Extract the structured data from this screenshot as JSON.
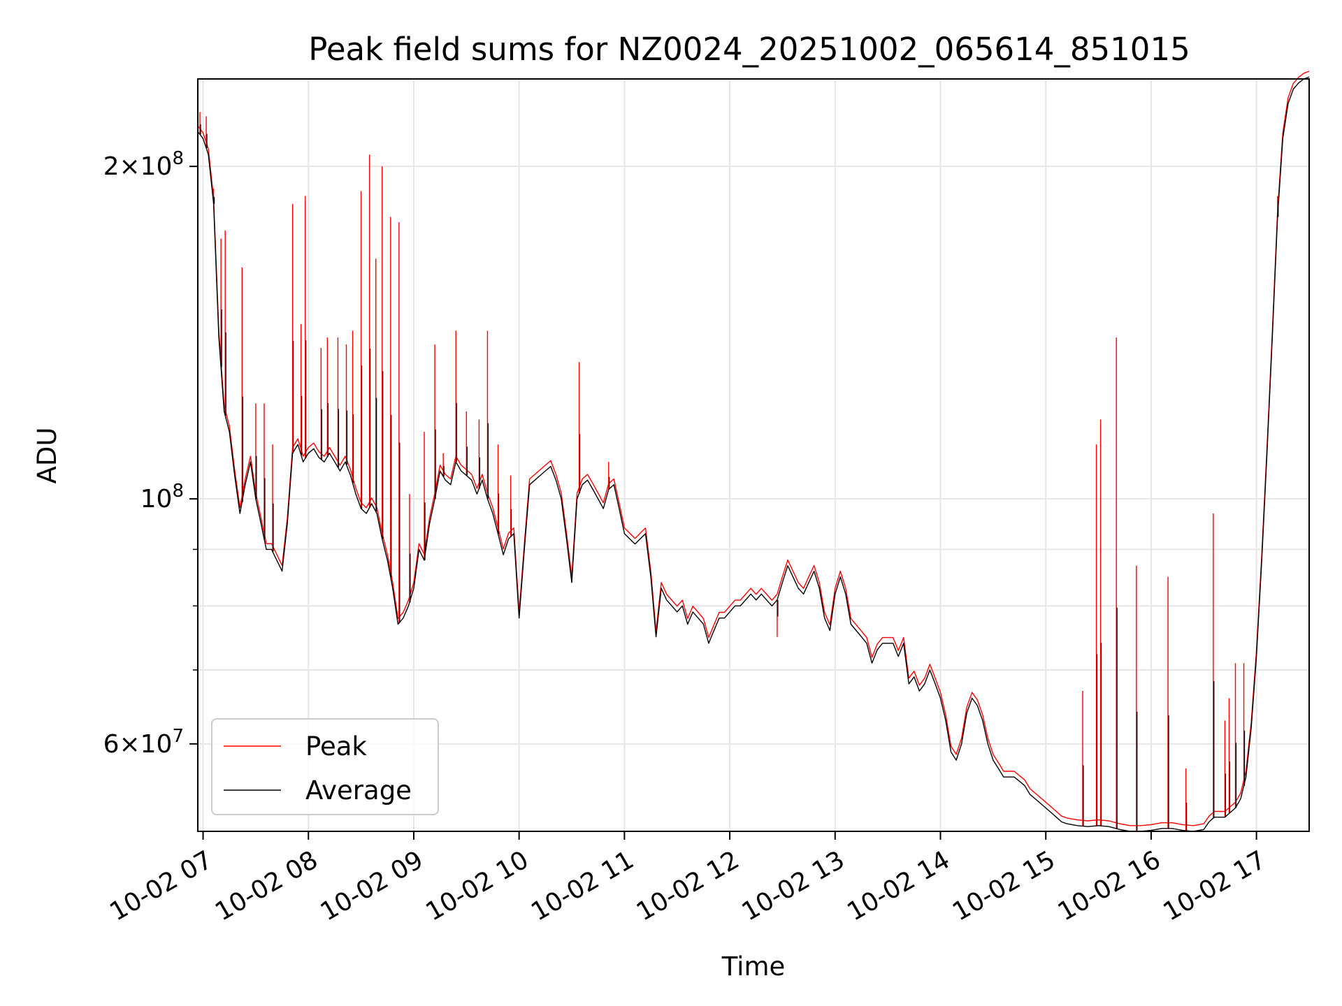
{
  "chart_data": {
    "type": "line",
    "title": "Peak field sums for NZ0024_20251002_065614_851015",
    "xlabel": "Time",
    "ylabel": "ADU",
    "yscale": "log",
    "x_unit": "hour of 2025-10-02",
    "xlim": [
      6.95,
      17.5
    ],
    "ylim": [
      50000000,
      240000000
    ],
    "x_tick_values": [
      7,
      8,
      9,
      10,
      11,
      12,
      13,
      14,
      15,
      16,
      17
    ],
    "x_tick_labels": [
      "10-02 07",
      "10-02 08",
      "10-02 09",
      "10-02 10",
      "10-02 11",
      "10-02 12",
      "10-02 13",
      "10-02 14",
      "10-02 15",
      "10-02 16",
      "10-02 17"
    ],
    "y_major_ticks": [
      {
        "value": 60000000,
        "mantissa": "6",
        "exp": "7"
      },
      {
        "value": 100000000,
        "mantissa": "",
        "exp": "8"
      },
      {
        "value": 200000000,
        "mantissa": "2",
        "exp": "8"
      }
    ],
    "y_minor_ticks": [
      70000000,
      80000000,
      90000000
    ],
    "grid": true,
    "legend_position": "lower-left",
    "series": [
      {
        "name": "Peak",
        "color": "#ff0000"
      },
      {
        "name": "Average",
        "color": "#000000"
      }
    ],
    "average_points": [
      [
        6.95,
        215000000
      ],
      [
        7.0,
        212000000
      ],
      [
        7.05,
        205000000
      ],
      [
        7.1,
        185000000
      ],
      [
        7.15,
        140000000
      ],
      [
        7.2,
        120000000
      ],
      [
        7.25,
        115000000
      ],
      [
        7.3,
        105000000
      ],
      [
        7.35,
        97000000
      ],
      [
        7.4,
        103000000
      ],
      [
        7.45,
        108000000
      ],
      [
        7.5,
        100000000
      ],
      [
        7.55,
        95000000
      ],
      [
        7.6,
        90000000
      ],
      [
        7.65,
        90000000
      ],
      [
        7.7,
        88000000
      ],
      [
        7.75,
        86000000
      ],
      [
        7.8,
        95000000
      ],
      [
        7.85,
        110000000
      ],
      [
        7.9,
        112000000
      ],
      [
        7.95,
        108000000
      ],
      [
        8.0,
        110000000
      ],
      [
        8.05,
        111000000
      ],
      [
        8.1,
        109000000
      ],
      [
        8.15,
        108000000
      ],
      [
        8.2,
        110000000
      ],
      [
        8.25,
        108000000
      ],
      [
        8.3,
        106000000
      ],
      [
        8.35,
        108000000
      ],
      [
        8.4,
        105000000
      ],
      [
        8.45,
        101000000
      ],
      [
        8.5,
        98000000
      ],
      [
        8.55,
        97000000
      ],
      [
        8.6,
        99000000
      ],
      [
        8.65,
        97000000
      ],
      [
        8.7,
        92000000
      ],
      [
        8.75,
        88000000
      ],
      [
        8.8,
        83000000
      ],
      [
        8.85,
        77000000
      ],
      [
        8.9,
        78000000
      ],
      [
        8.95,
        80000000
      ],
      [
        9.0,
        83000000
      ],
      [
        9.05,
        90000000
      ],
      [
        9.1,
        88000000
      ],
      [
        9.15,
        95000000
      ],
      [
        9.2,
        100000000
      ],
      [
        9.25,
        106000000
      ],
      [
        9.3,
        104000000
      ],
      [
        9.35,
        103000000
      ],
      [
        9.4,
        108000000
      ],
      [
        9.45,
        106000000
      ],
      [
        9.5,
        105000000
      ],
      [
        9.55,
        104000000
      ],
      [
        9.6,
        101000000
      ],
      [
        9.65,
        104000000
      ],
      [
        9.7,
        100000000
      ],
      [
        9.75,
        97000000
      ],
      [
        9.8,
        93000000
      ],
      [
        9.85,
        89000000
      ],
      [
        9.9,
        92000000
      ],
      [
        9.95,
        93000000
      ],
      [
        10.0,
        78000000
      ],
      [
        10.05,
        90000000
      ],
      [
        10.1,
        103000000
      ],
      [
        10.15,
        104000000
      ],
      [
        10.2,
        105000000
      ],
      [
        10.25,
        106000000
      ],
      [
        10.3,
        107000000
      ],
      [
        10.35,
        104000000
      ],
      [
        10.4,
        100000000
      ],
      [
        10.45,
        92000000
      ],
      [
        10.5,
        84000000
      ],
      [
        10.55,
        100000000
      ],
      [
        10.6,
        103000000
      ],
      [
        10.65,
        104000000
      ],
      [
        10.7,
        102000000
      ],
      [
        10.75,
        100000000
      ],
      [
        10.8,
        98000000
      ],
      [
        10.85,
        102000000
      ],
      [
        10.9,
        103000000
      ],
      [
        10.95,
        98000000
      ],
      [
        11.0,
        93000000
      ],
      [
        11.05,
        92000000
      ],
      [
        11.1,
        91000000
      ],
      [
        11.15,
        92000000
      ],
      [
        11.2,
        93000000
      ],
      [
        11.25,
        85000000
      ],
      [
        11.3,
        75000000
      ],
      [
        11.35,
        83000000
      ],
      [
        11.4,
        81000000
      ],
      [
        11.45,
        80000000
      ],
      [
        11.5,
        79000000
      ],
      [
        11.55,
        80000000
      ],
      [
        11.6,
        77000000
      ],
      [
        11.65,
        79000000
      ],
      [
        11.7,
        78000000
      ],
      [
        11.75,
        77000000
      ],
      [
        11.8,
        74000000
      ],
      [
        11.85,
        76000000
      ],
      [
        11.9,
        78000000
      ],
      [
        11.95,
        78000000
      ],
      [
        12.0,
        79000000
      ],
      [
        12.05,
        80000000
      ],
      [
        12.1,
        80000000
      ],
      [
        12.15,
        81000000
      ],
      [
        12.2,
        82000000
      ],
      [
        12.25,
        81000000
      ],
      [
        12.3,
        82000000
      ],
      [
        12.35,
        81000000
      ],
      [
        12.4,
        80000000
      ],
      [
        12.45,
        81000000
      ],
      [
        12.5,
        84000000
      ],
      [
        12.55,
        87000000
      ],
      [
        12.6,
        85000000
      ],
      [
        12.65,
        83000000
      ],
      [
        12.7,
        82000000
      ],
      [
        12.75,
        84000000
      ],
      [
        12.8,
        86000000
      ],
      [
        12.85,
        83000000
      ],
      [
        12.9,
        78000000
      ],
      [
        12.95,
        76000000
      ],
      [
        13.0,
        82000000
      ],
      [
        13.05,
        85000000
      ],
      [
        13.1,
        82000000
      ],
      [
        13.15,
        77000000
      ],
      [
        13.2,
        76000000
      ],
      [
        13.25,
        75000000
      ],
      [
        13.3,
        74000000
      ],
      [
        13.35,
        71000000
      ],
      [
        13.4,
        73000000
      ],
      [
        13.45,
        74000000
      ],
      [
        13.5,
        74000000
      ],
      [
        13.55,
        74000000
      ],
      [
        13.6,
        72000000
      ],
      [
        13.65,
        74000000
      ],
      [
        13.7,
        68000000
      ],
      [
        13.75,
        69000000
      ],
      [
        13.8,
        67000000
      ],
      [
        13.85,
        68000000
      ],
      [
        13.9,
        70000000
      ],
      [
        13.95,
        68000000
      ],
      [
        14.0,
        66000000
      ],
      [
        14.05,
        63000000
      ],
      [
        14.1,
        59000000
      ],
      [
        14.15,
        58000000
      ],
      [
        14.2,
        60000000
      ],
      [
        14.25,
        64000000
      ],
      [
        14.3,
        66000000
      ],
      [
        14.35,
        65000000
      ],
      [
        14.4,
        63000000
      ],
      [
        14.45,
        60000000
      ],
      [
        14.5,
        58000000
      ],
      [
        14.55,
        57000000
      ],
      [
        14.6,
        56000000
      ],
      [
        14.65,
        56000000
      ],
      [
        14.7,
        56000000
      ],
      [
        14.75,
        55500000
      ],
      [
        14.8,
        55000000
      ],
      [
        14.85,
        54000000
      ],
      [
        14.9,
        53500000
      ],
      [
        14.95,
        53000000
      ],
      [
        15.0,
        52500000
      ],
      [
        15.05,
        52000000
      ],
      [
        15.1,
        51500000
      ],
      [
        15.15,
        51000000
      ],
      [
        15.2,
        50800000
      ],
      [
        15.3,
        50600000
      ],
      [
        15.4,
        50500000
      ],
      [
        15.5,
        50600000
      ],
      [
        15.6,
        50500000
      ],
      [
        15.7,
        50200000
      ],
      [
        15.8,
        50000000
      ],
      [
        15.9,
        50000000
      ],
      [
        16.0,
        50100000
      ],
      [
        16.1,
        50300000
      ],
      [
        16.2,
        50300000
      ],
      [
        16.3,
        50100000
      ],
      [
        16.4,
        50000000
      ],
      [
        16.5,
        50200000
      ],
      [
        16.55,
        51000000
      ],
      [
        16.6,
        51500000
      ],
      [
        16.65,
        51500000
      ],
      [
        16.7,
        51500000
      ],
      [
        16.75,
        52000000
      ],
      [
        16.8,
        52500000
      ],
      [
        16.85,
        53500000
      ],
      [
        16.9,
        56000000
      ],
      [
        16.95,
        62000000
      ],
      [
        17.0,
        72000000
      ],
      [
        17.05,
        88000000
      ],
      [
        17.1,
        110000000
      ],
      [
        17.15,
        140000000
      ],
      [
        17.2,
        180000000
      ],
      [
        17.25,
        212000000
      ],
      [
        17.3,
        228000000
      ],
      [
        17.35,
        235000000
      ],
      [
        17.4,
        238000000
      ],
      [
        17.45,
        240000000
      ],
      [
        17.5,
        241000000
      ]
    ],
    "peak_spikes": [
      [
        6.97,
        224000000
      ],
      [
        7.03,
        222000000
      ],
      [
        7.1,
        191000000
      ],
      [
        7.17,
        172000000
      ],
      [
        7.21,
        175000000
      ],
      [
        7.37,
        162000000
      ],
      [
        7.5,
        122000000
      ],
      [
        7.58,
        122000000
      ],
      [
        7.66,
        112000000
      ],
      [
        7.85,
        185000000
      ],
      [
        7.93,
        144000000
      ],
      [
        7.97,
        188000000
      ],
      [
        8.12,
        137000000
      ],
      [
        8.18,
        140000000
      ],
      [
        8.28,
        140000000
      ],
      [
        8.36,
        138000000
      ],
      [
        8.42,
        142000000
      ],
      [
        8.5,
        190000000
      ],
      [
        8.58,
        205000000
      ],
      [
        8.64,
        165000000
      ],
      [
        8.7,
        200000000
      ],
      [
        8.78,
        180000000
      ],
      [
        8.86,
        178000000
      ],
      [
        8.96,
        101000000
      ],
      [
        9.1,
        115000000
      ],
      [
        9.2,
        138000000
      ],
      [
        9.28,
        110000000
      ],
      [
        9.4,
        142000000
      ],
      [
        9.5,
        120000000
      ],
      [
        9.62,
        118000000
      ],
      [
        9.7,
        142000000
      ],
      [
        9.8,
        112000000
      ],
      [
        9.92,
        105000000
      ],
      [
        10.57,
        133000000
      ],
      [
        10.85,
        108000000
      ],
      [
        12.45,
        75000000
      ],
      [
        15.35,
        67000000
      ],
      [
        15.48,
        112000000
      ],
      [
        15.52,
        118000000
      ],
      [
        15.67,
        140000000
      ],
      [
        15.86,
        87000000
      ],
      [
        16.16,
        85000000
      ],
      [
        16.33,
        57000000
      ],
      [
        16.59,
        97000000
      ],
      [
        16.7,
        63000000
      ],
      [
        16.74,
        66000000
      ],
      [
        16.8,
        71000000
      ],
      [
        16.88,
        71000000
      ],
      [
        17.2,
        188000000
      ]
    ]
  }
}
